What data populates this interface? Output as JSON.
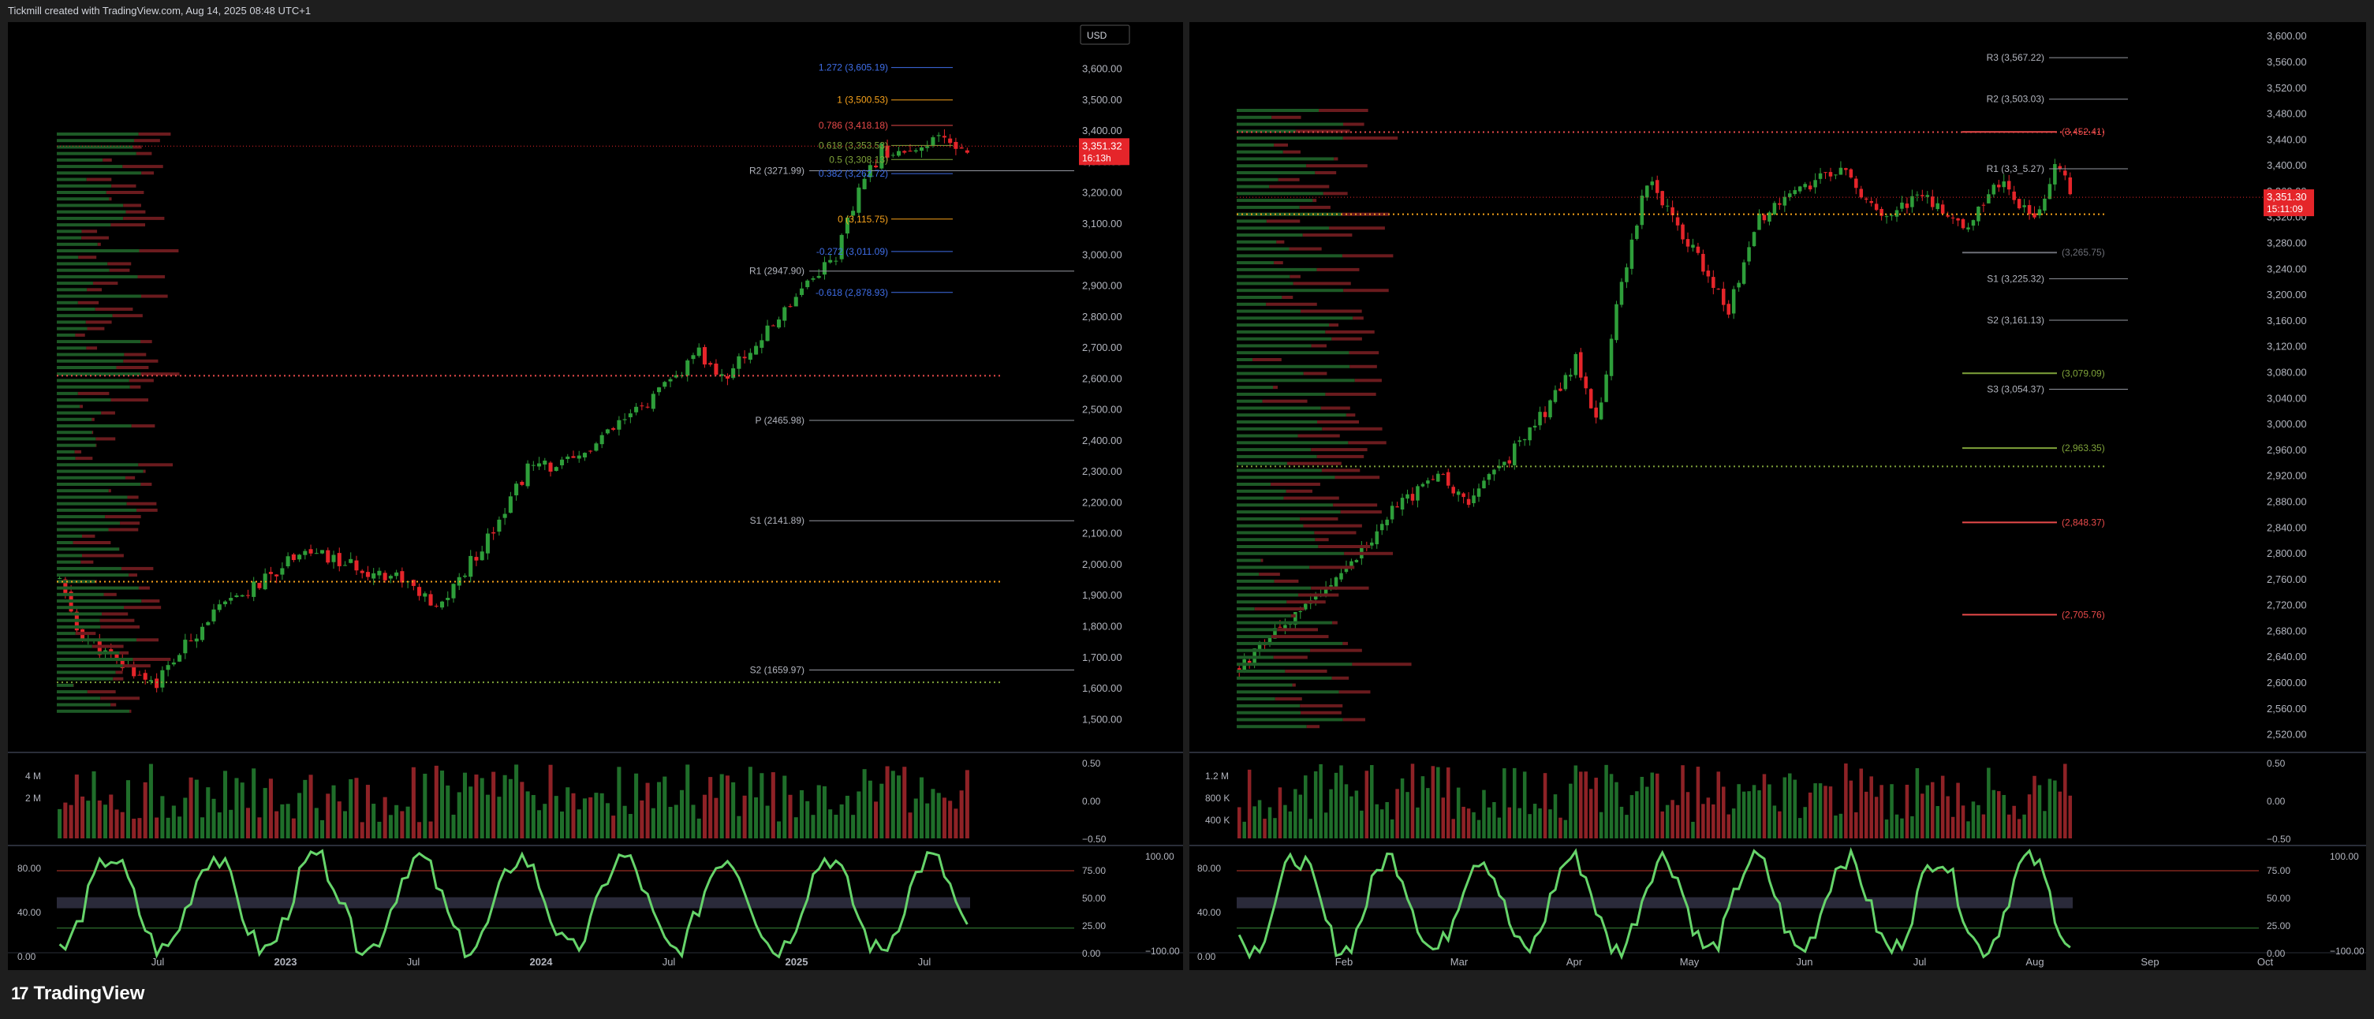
{
  "header": {
    "attribution": "Tickmill created with TradingView.com, Aug 14, 2025 08:48 UTC+1"
  },
  "footer": {
    "brand": "TradingView",
    "logo_mark": "17"
  },
  "colors": {
    "bg": "#000000",
    "up": "#2e9e3a",
    "down": "#e5252a",
    "grid": "#111111",
    "text": "#b2b5be",
    "fib_orange": "#f7a21b",
    "fib_blue": "#3f6ee8",
    "rsi_line": "#66d46a",
    "rsi_down": "#ef5350",
    "price_tag": "#e5252a"
  },
  "chart_data": [
    {
      "type": "candlestick",
      "panel": "left",
      "currency_button": "USD",
      "timeframe": "weekly",
      "price_axis": [
        "3,600.00",
        "3,500.00",
        "3,400.00",
        "3,300.00",
        "3,200.00",
        "3,100.00",
        "3,000.00",
        "2,900.00",
        "2,800.00",
        "2,700.00",
        "2,600.00",
        "2,500.00",
        "2,400.00",
        "2,300.00",
        "2,200.00",
        "2,100.00",
        "2,000.00",
        "1,900.00",
        "1,800.00",
        "1,700.00",
        "1,600.00",
        "1,500.00"
      ],
      "ylim": [
        1460,
        3650
      ],
      "time_axis": [
        "Jul",
        "2023",
        "Jul",
        "2024",
        "Jul",
        "2025",
        "Jul"
      ],
      "last_price": "3,351.32",
      "countdown": "16:13h",
      "trend_points": [
        [
          0,
          1950
        ],
        [
          3,
          1790
        ],
        [
          10,
          1680
        ],
        [
          17,
          1620
        ],
        [
          26,
          1830
        ],
        [
          36,
          1950
        ],
        [
          42,
          2050
        ],
        [
          52,
          1990
        ],
        [
          60,
          1960
        ],
        [
          66,
          1850
        ],
        [
          74,
          2060
        ],
        [
          82,
          2310
        ],
        [
          90,
          2330
        ],
        [
          98,
          2450
        ],
        [
          106,
          2570
        ],
        [
          112,
          2680
        ],
        [
          116,
          2600
        ],
        [
          124,
          2750
        ],
        [
          130,
          2900
        ],
        [
          136,
          3000
        ],
        [
          140,
          3200
        ],
        [
          144,
          3340
        ],
        [
          150,
          3320
        ],
        [
          154,
          3380
        ],
        [
          157,
          3351
        ]
      ],
      "pivots": [
        {
          "label": "R2 (3271.99)",
          "value": 3271.99
        },
        {
          "label": "R1 (2947.90)",
          "value": 2947.9
        },
        {
          "label": "P (2465.98)",
          "value": 2465.98
        },
        {
          "label": "S1 (2141.89)",
          "value": 2141.89
        },
        {
          "label": "S2 (1659.97)",
          "value": 1659.97
        }
      ],
      "fib_levels": [
        {
          "label": "1.272 (3,605.19)",
          "value": 3605.19,
          "color": "blue"
        },
        {
          "label": "1 (3,500.53)",
          "value": 3500.53,
          "color": "orange"
        },
        {
          "label": "0.786 (3,418.18)",
          "value": 3418.18,
          "color": "red"
        },
        {
          "label": "0.618 (3,353.53)",
          "value": 3353.53,
          "color": "green"
        },
        {
          "label": "0.5 (3,308.13)",
          "value": 3308.13,
          "color": "green"
        },
        {
          "label": "0.382 (3,262.72)",
          "value": 3262.72,
          "color": "blue"
        },
        {
          "label": "0 (3,115.75)",
          "value": 3115.75,
          "color": "orange"
        },
        {
          "label": "-0.272 (3,011.09)",
          "value": 3011.09,
          "color": "blue"
        },
        {
          "label": "-0.618 (2,878.93)",
          "value": 2878.93,
          "color": "blue"
        }
      ],
      "volume_axis": [
        "4 M",
        "2 M"
      ],
      "volume_right_axis": [
        "0.50",
        "0.00",
        "−0.50"
      ],
      "rsi_left_axis": [
        "80.00",
        "40.00",
        "0.00"
      ],
      "rsi_right_axis": [
        "75.00",
        "50.00",
        "25.00",
        "0.00"
      ],
      "rsi_far_axis": [
        "100.00",
        "−100.00"
      ]
    },
    {
      "type": "candlestick",
      "panel": "right",
      "timeframe": "daily",
      "price_axis": [
        "3,600.00",
        "3,560.00",
        "3,520.00",
        "3,480.00",
        "3,440.00",
        "3,400.00",
        "3,360.00",
        "3,320.00",
        "3,280.00",
        "3,240.00",
        "3,200.00",
        "3,160.00",
        "3,120.00",
        "3,080.00",
        "3,040.00",
        "3,000.00",
        "2,960.00",
        "2,920.00",
        "2,880.00",
        "2,840.00",
        "2,800.00",
        "2,760.00",
        "2,720.00",
        "2,680.00",
        "2,640.00",
        "2,600.00",
        "2,560.00",
        "2,520.00"
      ],
      "ylim": [
        2500,
        3610
      ],
      "time_axis": [
        "Feb",
        "Mar",
        "Apr",
        "May",
        "Jun",
        "Jul",
        "Aug",
        "Sep",
        "Oct"
      ],
      "last_price": "3,351.30",
      "countdown": "15:11:09",
      "trend_points": [
        [
          0,
          2620
        ],
        [
          10,
          2700
        ],
        [
          20,
          2760
        ],
        [
          30,
          2870
        ],
        [
          40,
          2920
        ],
        [
          45,
          2880
        ],
        [
          52,
          2940
        ],
        [
          60,
          3020
        ],
        [
          66,
          3100
        ],
        [
          70,
          3000
        ],
        [
          75,
          3220
        ],
        [
          80,
          3380
        ],
        [
          88,
          3280
        ],
        [
          96,
          3180
        ],
        [
          102,
          3320
        ],
        [
          110,
          3360
        ],
        [
          118,
          3400
        ],
        [
          126,
          3320
        ],
        [
          134,
          3360
        ],
        [
          142,
          3300
        ],
        [
          150,
          3380
        ],
        [
          156,
          3310
        ],
        [
          160,
          3400
        ],
        [
          164,
          3351
        ]
      ],
      "pivots": [
        {
          "label": "R3 (3,567.22)",
          "value": 3567.22
        },
        {
          "label": "R2 (3,503.03)",
          "value": 3503.03
        },
        {
          "label": "R1 (3,3_5.27)",
          "value": 3395.27
        },
        {
          "label": "S1 (3,225.32)",
          "value": 3225.32
        },
        {
          "label": "S2 (3,161.13)",
          "value": 3161.13
        },
        {
          "label": "S3 (3,054.37)",
          "value": 3054.37
        }
      ],
      "levels": [
        {
          "label": "(3,452.41)",
          "value": 3452.41,
          "color": "red"
        },
        {
          "label": "(3,265.75)",
          "value": 3265.75,
          "color": "gray"
        },
        {
          "label": "(3,079.09)",
          "value": 3079.09,
          "color": "green"
        },
        {
          "label": "(2,963.35)",
          "value": 2963.35,
          "color": "green"
        },
        {
          "label": "(2,848.37)",
          "value": 2848.37,
          "color": "red"
        },
        {
          "label": "(2,705.76)",
          "value": 2705.76,
          "color": "red"
        }
      ],
      "volume_axis": [
        "1.2 M",
        "800 K",
        "400 K"
      ],
      "volume_right_axis": [
        "0.50",
        "0.00",
        "−0.50"
      ],
      "rsi_left_axis": [
        "80.00",
        "40.00",
        "0.00"
      ],
      "rsi_right_axis": [
        "75.00",
        "50.00",
        "25.00",
        "0.00"
      ],
      "rsi_far_axis": [
        "100.00",
        "−100.00"
      ]
    }
  ]
}
